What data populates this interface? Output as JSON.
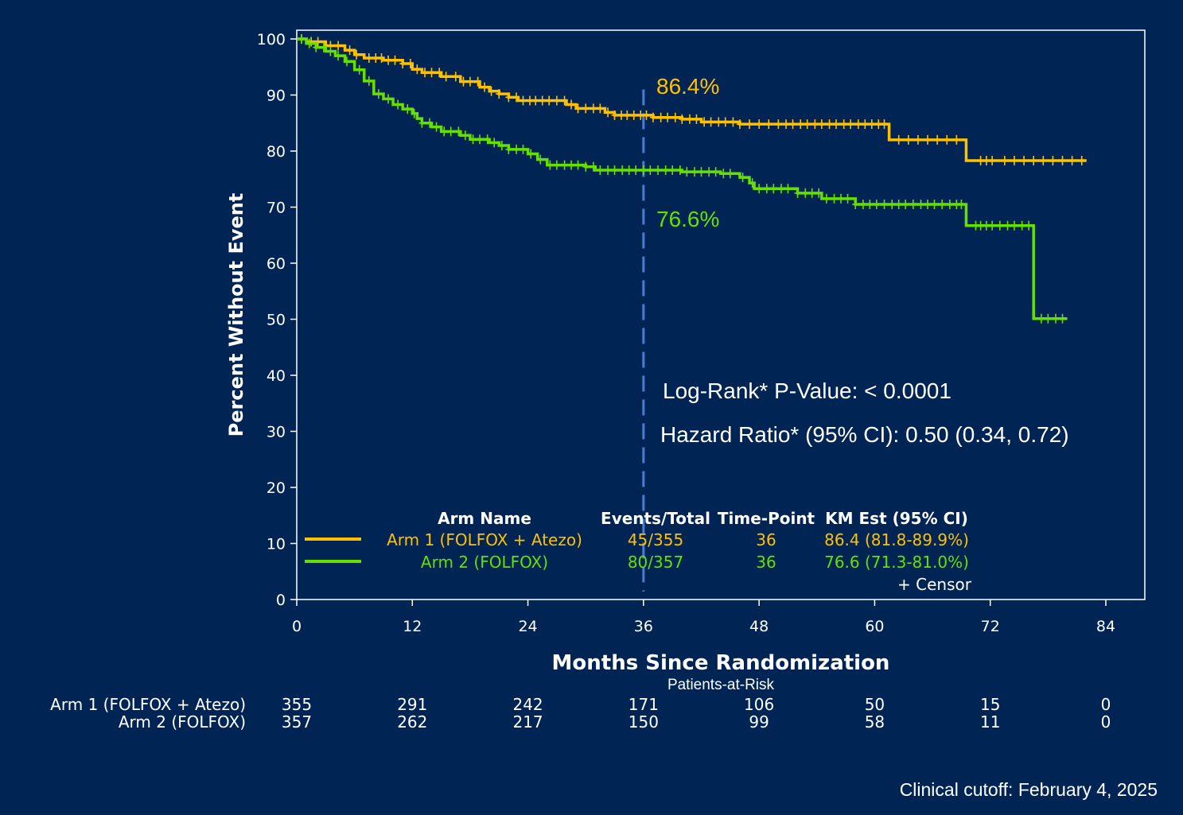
{
  "chart_data": {
    "type": "line",
    "subtype": "kaplan-meier",
    "xlabel": "Months Since Randomization",
    "ylabel": "Percent Without Event",
    "xlim": [
      0,
      84
    ],
    "ylim": [
      0,
      100
    ],
    "xticks": [
      0,
      12,
      24,
      36,
      48,
      60,
      72,
      84
    ],
    "yticks": [
      0,
      10,
      20,
      30,
      40,
      50,
      60,
      70,
      80,
      90,
      100
    ],
    "reference_line_x": 36,
    "colors": {
      "background": "#002554",
      "arm1": "#FFC000",
      "arm2": "#66E000",
      "refline": "#4A7BD6"
    },
    "series": [
      {
        "name": "Arm 1 (FOLFOX + Atezo)",
        "color": "#FFC000",
        "steps": [
          [
            0,
            100
          ],
          [
            1,
            99.5
          ],
          [
            3,
            98.8
          ],
          [
            5,
            98
          ],
          [
            6,
            97.2
          ],
          [
            7,
            96.6
          ],
          [
            9,
            96.2
          ],
          [
            11,
            95.6
          ],
          [
            12,
            94.6
          ],
          [
            13,
            94
          ],
          [
            15,
            93.3
          ],
          [
            17,
            92.4
          ],
          [
            19,
            91.4
          ],
          [
            20,
            90.7
          ],
          [
            21,
            90.2
          ],
          [
            22,
            89.6
          ],
          [
            23,
            89
          ],
          [
            28,
            88.3
          ],
          [
            29,
            87.6
          ],
          [
            32,
            86.9
          ],
          [
            33,
            86.4
          ],
          [
            37,
            86
          ],
          [
            40,
            85.7
          ],
          [
            42,
            85.2
          ],
          [
            46,
            84.8
          ],
          [
            61.5,
            84.4
          ],
          [
            61.5,
            82
          ],
          [
            69.5,
            82
          ],
          [
            69.5,
            78.3
          ],
          [
            82,
            78.3
          ]
        ],
        "censor_x": [
          0.5,
          1.5,
          2.2,
          3.5,
          4.3,
          5.5,
          6.2,
          7.5,
          8.2,
          8.8,
          9.5,
          10.2,
          11,
          11.8,
          12.5,
          13.3,
          14,
          14.8,
          15.5,
          16.5,
          17.3,
          18,
          18.8,
          19.5,
          20.2,
          21,
          22,
          22.8,
          23.5,
          24.2,
          24.8,
          25.5,
          26.2,
          27,
          27.8,
          28.5,
          29.2,
          30,
          30.8,
          31.5,
          32.3,
          33,
          33.7,
          34.3,
          35,
          35.7,
          36.3,
          37,
          37.8,
          38.5,
          39.3,
          40,
          40.8,
          41.5,
          42.3,
          43,
          43.8,
          44.5,
          45.3,
          46,
          47,
          48,
          49,
          50,
          50.8,
          51.5,
          52.3,
          53,
          53.8,
          54.5,
          55.3,
          56,
          56.8,
          57.5,
          58.3,
          59,
          59.7,
          60.4,
          61,
          62.5,
          63.5,
          64.5,
          65.5,
          66.5,
          67.5,
          68.5,
          71,
          71.6,
          72.2,
          73.5,
          74.5,
          75.5,
          76.5,
          77.5,
          78.5,
          79.5,
          80.5,
          81.5
        ],
        "landmark_label": "86.4%"
      },
      {
        "name": "Arm 2 (FOLFOX)",
        "color": "#66E000",
        "steps": [
          [
            0,
            100
          ],
          [
            1,
            99.2
          ],
          [
            2,
            98.5
          ],
          [
            3,
            97.8
          ],
          [
            4,
            97
          ],
          [
            5,
            96
          ],
          [
            6,
            94.5
          ],
          [
            7,
            92.5
          ],
          [
            8,
            90.2
          ],
          [
            9,
            89.3
          ],
          [
            10,
            88.3
          ],
          [
            11,
            87.5
          ],
          [
            12,
            86.7
          ],
          [
            12.5,
            85.8
          ],
          [
            13,
            85
          ],
          [
            14,
            84.3
          ],
          [
            15,
            83.5
          ],
          [
            17,
            82.8
          ],
          [
            18,
            82.1
          ],
          [
            20,
            81.5
          ],
          [
            21,
            81
          ],
          [
            22,
            80.3
          ],
          [
            24,
            79.5
          ],
          [
            25,
            78.5
          ],
          [
            26,
            77.5
          ],
          [
            30,
            77.2
          ],
          [
            31,
            76.6
          ],
          [
            40,
            76.3
          ],
          [
            44,
            76
          ],
          [
            46,
            75.3
          ],
          [
            47,
            74.3
          ],
          [
            47.5,
            73.3
          ],
          [
            52,
            72.5
          ],
          [
            54.5,
            71.5
          ],
          [
            58,
            70.5
          ],
          [
            69.5,
            70.5
          ],
          [
            69.5,
            66.7
          ],
          [
            76.5,
            66.7
          ],
          [
            76.5,
            50.1
          ],
          [
            80,
            50.1
          ]
        ],
        "censor_x": [
          0.5,
          1.3,
          2,
          2.8,
          3.5,
          4.3,
          5.2,
          6.5,
          7.5,
          8.5,
          9.5,
          10.5,
          11.5,
          12.2,
          13,
          13.8,
          14.5,
          15.3,
          16,
          16.8,
          17.5,
          18.3,
          19,
          19.8,
          20.5,
          21.3,
          22,
          22.8,
          23.5,
          24.3,
          25.3,
          26.3,
          27,
          27.8,
          28.5,
          29.2,
          30,
          30.8,
          31.5,
          32.3,
          33,
          33.8,
          34.5,
          35.2,
          36,
          36.7,
          37.5,
          38.3,
          39,
          39.8,
          40.5,
          41.3,
          42,
          42.8,
          43.5,
          44.3,
          45,
          46.3,
          47.3,
          48,
          48.8,
          49.5,
          50.3,
          51,
          52,
          52.8,
          53.5,
          54.2,
          55,
          55.8,
          56.5,
          57.2,
          58,
          58.8,
          59.5,
          60.2,
          61,
          61.8,
          62.5,
          63.2,
          64,
          64.8,
          65.5,
          66.2,
          67,
          67.8,
          68.5,
          69,
          70.5,
          71,
          71.6,
          72.2,
          73,
          73.8,
          74.5,
          75.3,
          76,
          77.3,
          78,
          78.8,
          79.5
        ],
        "landmark_label": "76.6%"
      }
    ],
    "annotations": {
      "log_rank": "Log-Rank* P-Value: < 0.0001",
      "hazard_ratio": "Hazard Ratio* (95% CI): 0.50 (0.34, 0.72)"
    },
    "legend": {
      "headers": [
        "Arm Name",
        "Events/Total",
        "Time-Point",
        "KM Est (95% CI)"
      ],
      "rows": [
        {
          "arm": "Arm 1 (FOLFOX + Atezo)",
          "events": "45/355",
          "timepoint": "36",
          "km": "86.4 (81.8-89.9%)"
        },
        {
          "arm": "Arm 2 (FOLFOX)",
          "events": "80/357",
          "timepoint": "36",
          "km": "76.6 (71.3-81.0%)"
        }
      ],
      "censor_label": "+ Censor"
    },
    "risk_table": {
      "title": "Patients-at-Risk",
      "rows": [
        {
          "label": "Arm 1 (FOLFOX + Atezo)",
          "values": [
            355,
            291,
            242,
            171,
            106,
            50,
            15,
            0
          ]
        },
        {
          "label": "Arm 2 (FOLFOX)",
          "values": [
            357,
            262,
            217,
            150,
            99,
            58,
            11,
            0
          ]
        }
      ]
    }
  },
  "footer": {
    "cutoff": "Clinical cutoff: February 4, 2025"
  }
}
